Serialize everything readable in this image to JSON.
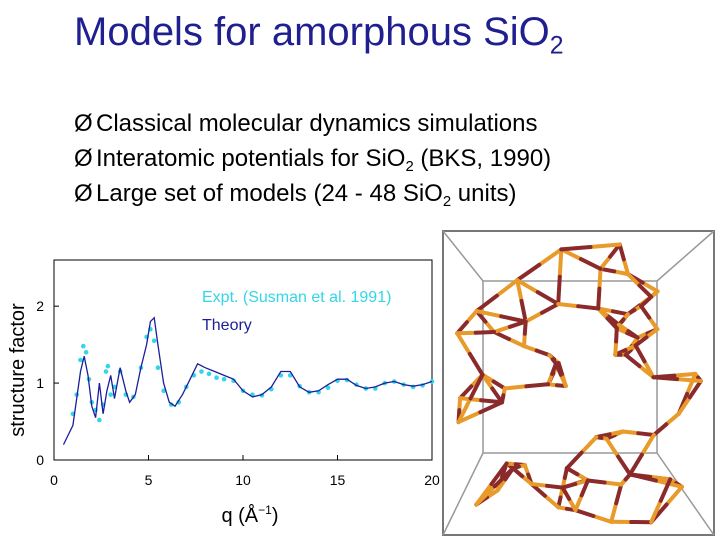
{
  "title": {
    "text": "Models for amorphous SiO",
    "sub": "2"
  },
  "bullets": [
    {
      "marker": "Ø",
      "text": "Classical molecular dynamics simulations",
      "sub": "",
      "tail": ""
    },
    {
      "marker": "Ø",
      "text": "Interatomic potentials for SiO",
      "sub": "2",
      "tail": " (BKS, 1990)"
    },
    {
      "marker": "Ø",
      "text": "Large set of models (24 - 48 SiO",
      "sub": "2",
      "tail": " units)"
    }
  ],
  "chart_data": {
    "type": "line",
    "xlabel": "q (Å",
    "xlabel_sup": "−1",
    "xlabel_tail": ")",
    "ylabel": "structure factor",
    "xlim": [
      0,
      20
    ],
    "ylim": [
      0,
      2.6
    ],
    "xticks": [
      0,
      5,
      10,
      15,
      20
    ],
    "yticks": [
      0,
      1,
      2
    ],
    "legend_position": "top-right",
    "series": [
      {
        "name": "Expt. (Susman et al. 1991)",
        "style": "dots",
        "color": "#33d6e8",
        "x": [
          1.0,
          1.2,
          1.4,
          1.55,
          1.7,
          1.85,
          2.0,
          2.2,
          2.4,
          2.6,
          2.75,
          2.85,
          3.0,
          3.2,
          3.5,
          3.8,
          4.2,
          4.6,
          4.9,
          5.1,
          5.3,
          5.5,
          5.8,
          6.2,
          6.6,
          7.0,
          7.4,
          7.8,
          8.2,
          8.6,
          9.0,
          9.5,
          10.0,
          10.5,
          11.0,
          11.5,
          12.0,
          12.5,
          13.0,
          13.5,
          14.0,
          14.5,
          15.0,
          15.5,
          16.0,
          16.5,
          17.0,
          17.5,
          18.0,
          18.5,
          19.0,
          19.5,
          20.0
        ],
        "y": [
          0.6,
          0.85,
          1.3,
          1.48,
          1.4,
          1.05,
          0.75,
          0.65,
          0.52,
          0.72,
          1.15,
          1.22,
          0.85,
          0.95,
          1.15,
          0.85,
          0.82,
          1.2,
          1.6,
          1.7,
          1.55,
          1.2,
          0.9,
          0.72,
          0.75,
          0.95,
          1.1,
          1.15,
          1.12,
          1.07,
          1.05,
          1.03,
          0.9,
          0.85,
          0.84,
          0.92,
          1.1,
          1.1,
          0.96,
          0.88,
          0.88,
          0.94,
          1.03,
          1.04,
          0.98,
          0.93,
          0.93,
          1.0,
          1.02,
          0.98,
          0.95,
          0.97,
          1.02
        ]
      },
      {
        "name": "Theory",
        "style": "line",
        "color": "#1b1f9c",
        "x": [
          0.5,
          0.8,
          1.0,
          1.2,
          1.4,
          1.6,
          1.8,
          2.0,
          2.2,
          2.4,
          2.6,
          2.8,
          3.0,
          3.2,
          3.5,
          3.8,
          4.0,
          4.3,
          4.6,
          4.9,
          5.1,
          5.3,
          5.5,
          5.8,
          6.1,
          6.4,
          6.8,
          7.2,
          7.6,
          8.0,
          8.5,
          9.0,
          9.5,
          10.0,
          10.5,
          11.0,
          11.5,
          12.0,
          12.5,
          13.0,
          13.5,
          14.0,
          14.5,
          15.0,
          15.5,
          16.0,
          16.5,
          17.0,
          17.5,
          18.0,
          18.5,
          19.0,
          19.5,
          20.0
        ],
        "y": [
          0.2,
          0.35,
          0.45,
          0.8,
          1.15,
          1.35,
          1.1,
          0.7,
          0.55,
          1.0,
          0.6,
          0.9,
          1.1,
          0.8,
          1.2,
          0.9,
          0.75,
          0.85,
          1.2,
          1.5,
          1.8,
          1.85,
          1.5,
          1.0,
          0.75,
          0.7,
          0.85,
          1.05,
          1.25,
          1.2,
          1.15,
          1.1,
          1.05,
          0.9,
          0.82,
          0.85,
          0.95,
          1.15,
          1.15,
          0.95,
          0.88,
          0.9,
          0.98,
          1.05,
          1.05,
          0.97,
          0.93,
          0.95,
          1.0,
          1.02,
          0.98,
          0.96,
          0.98,
          1.02
        ]
      }
    ]
  },
  "colors": {
    "title": "#1f1f8f",
    "expt": "#33d6e8",
    "theory": "#1b1f9c",
    "si": "#e89a2a",
    "o": "#8a2a2a"
  },
  "molecule_image": "amorphous-sio2-network-rendering"
}
